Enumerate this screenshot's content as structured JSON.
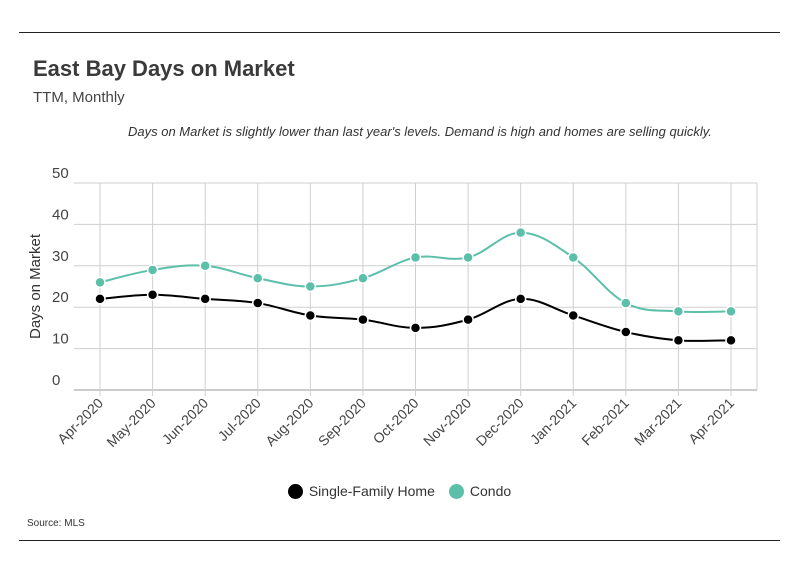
{
  "header": {
    "title": "East Bay Days on Market",
    "subtitle": "TTM, Monthly",
    "note": "Days on Market is slightly lower than last year's levels. Demand is high and homes are selling quickly."
  },
  "footer": {
    "source": "Source: MLS"
  },
  "chart_data": {
    "type": "line",
    "title": "East Bay Days on Market",
    "subtitle": "TTM, Monthly",
    "xlabel": "",
    "ylabel": "Days on Market",
    "ylim": [
      0,
      50
    ],
    "yticks": [
      0,
      10,
      20,
      30,
      40,
      50
    ],
    "grid": true,
    "legend_position": "bottom",
    "categories": [
      "Apr-2020",
      "May-2020",
      "Jun-2020",
      "Jul-2020",
      "Aug-2020",
      "Sep-2020",
      "Oct-2020",
      "Nov-2020",
      "Dec-2020",
      "Jan-2021",
      "Feb-2021",
      "Mar-2021",
      "Apr-2021"
    ],
    "series": [
      {
        "name": "Single-Family Home",
        "color": "#000000",
        "values": [
          22,
          23,
          22,
          21,
          18,
          17,
          15,
          17,
          22,
          18,
          14,
          12,
          12
        ]
      },
      {
        "name": "Condo",
        "color": "#5bbfa9",
        "values": [
          26,
          29,
          30,
          27,
          25,
          27,
          32,
          32,
          38,
          32,
          21,
          19,
          19
        ]
      }
    ]
  }
}
